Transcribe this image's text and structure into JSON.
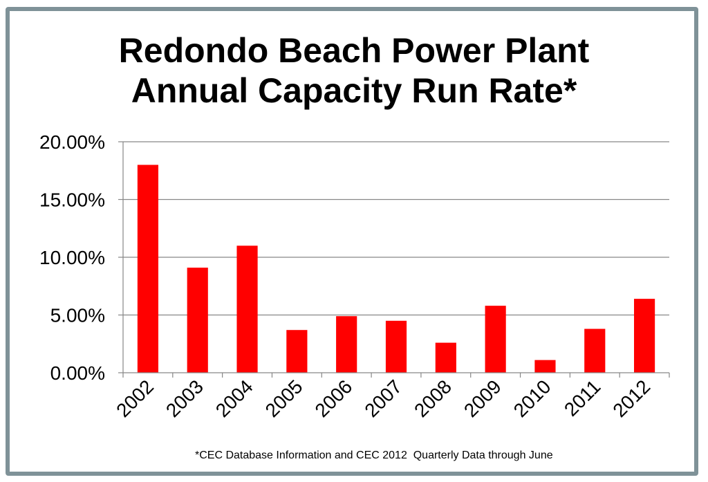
{
  "chart_data": {
    "type": "bar",
    "title_line1": "Redondo Beach Power Plant",
    "title_line2": "Annual Capacity Run Rate*",
    "categories": [
      "2002",
      "2003",
      "2004",
      "2005",
      "2006",
      "2007",
      "2008",
      "2009",
      "2010",
      "2011",
      "2012"
    ],
    "values": [
      0.18,
      0.091,
      0.11,
      0.037,
      0.049,
      0.045,
      0.026,
      0.058,
      0.011,
      0.038,
      0.064
    ],
    "yticks": [
      0,
      0.05,
      0.1,
      0.15,
      0.2
    ],
    "ytick_labels": [
      "0.00%",
      "5.00%",
      "10.00%",
      "15.00%",
      "20.00%"
    ],
    "ylim": [
      0,
      0.2
    ],
    "xlabel": "",
    "ylabel": "",
    "grid": true,
    "bar_color": "#ff0000",
    "gridline_color": "#868686",
    "footnote": "*CEC Database Information and CEC 2012  Quarterly Data through June"
  },
  "frame_color": "#7f9298"
}
